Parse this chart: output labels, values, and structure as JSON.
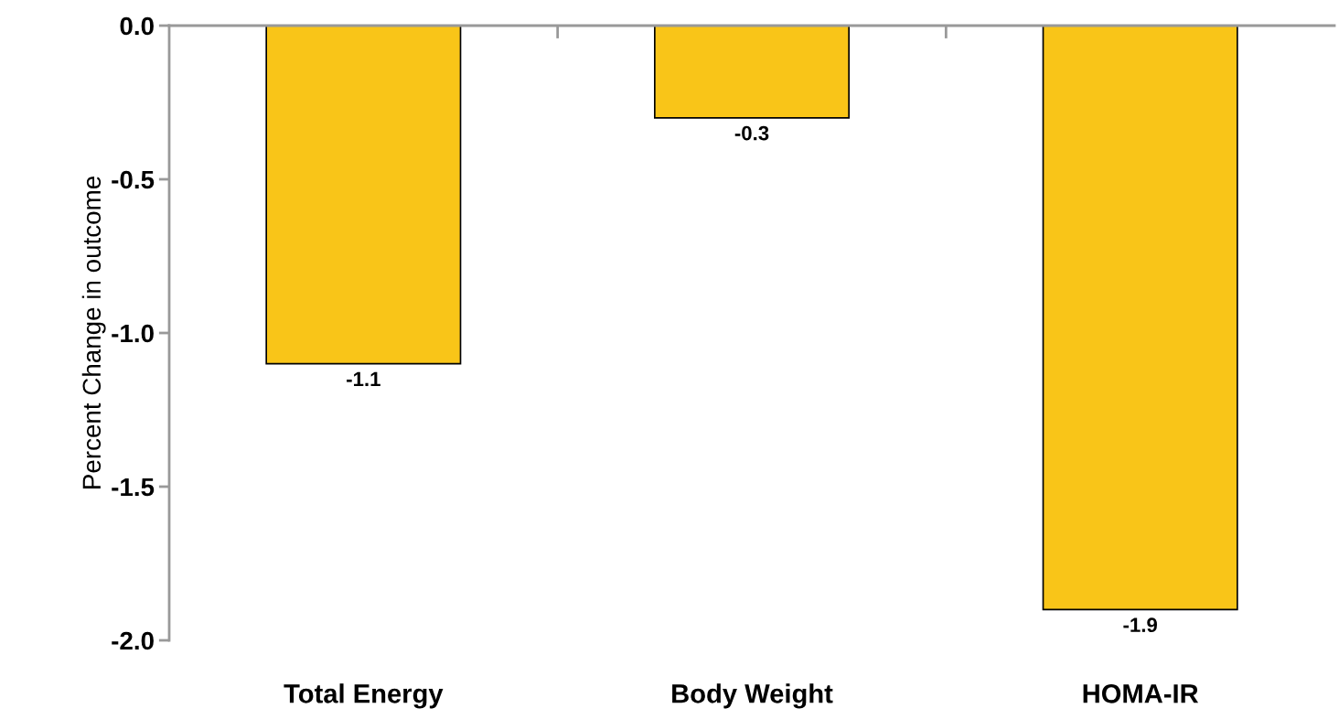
{
  "chart_data": {
    "type": "bar",
    "ylabel": "Percent Change in outcome",
    "categories": [
      "Total Energy",
      "Body Weight",
      "HOMA-IR"
    ],
    "values": [
      -1.1,
      -0.3,
      -1.9
    ],
    "color": "#f9c518",
    "ylim": [
      -2.0,
      0.0
    ],
    "yticks": [
      {
        "value": 0.0,
        "label": "0.0"
      },
      {
        "value": -0.5,
        "label": "-0.5"
      },
      {
        "value": -1.0,
        "label": "-1.0"
      },
      {
        "value": -1.5,
        "label": "-1.5"
      },
      {
        "value": -2.0,
        "label": "-2.0"
      }
    ],
    "data_labels": true,
    "grid": false,
    "legend": false
  }
}
